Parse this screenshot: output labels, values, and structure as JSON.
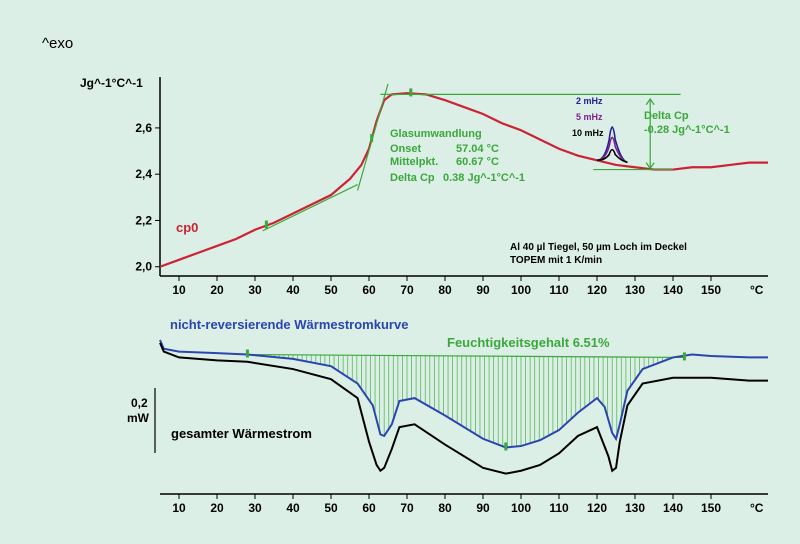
{
  "exo_label": "^exo",
  "chart_data": [
    {
      "type": "line",
      "ylabel": "Jg^-1°C^-1",
      "xlabel": "°C",
      "xlim": [
        5,
        165
      ],
      "ylim": [
        1.96,
        2.82
      ],
      "xticks": [
        10,
        20,
        30,
        40,
        50,
        60,
        70,
        80,
        90,
        100,
        110,
        120,
        130,
        140,
        150
      ],
      "yticks": [
        "2,0",
        "2,2",
        "2,4",
        "2,6"
      ],
      "ytick_values": [
        2.0,
        2.2,
        2.4,
        2.6
      ],
      "series": [
        {
          "name": "cp0",
          "color": "#cc2233",
          "x": [
            5,
            10,
            15,
            20,
            25,
            30,
            35,
            40,
            45,
            50,
            55,
            58,
            60,
            62,
            64,
            66,
            70,
            75,
            80,
            85,
            90,
            95,
            100,
            105,
            110,
            115,
            120,
            125,
            130,
            135,
            140,
            145,
            150,
            155,
            160,
            165
          ],
          "y": [
            2.0,
            2.03,
            2.06,
            2.09,
            2.12,
            2.16,
            2.19,
            2.23,
            2.27,
            2.31,
            2.38,
            2.44,
            2.51,
            2.63,
            2.72,
            2.745,
            2.75,
            2.745,
            2.72,
            2.69,
            2.66,
            2.62,
            2.59,
            2.55,
            2.51,
            2.48,
            2.46,
            2.44,
            2.43,
            2.42,
            2.42,
            2.43,
            2.43,
            2.44,
            2.45,
            2.45
          ]
        }
      ],
      "peaks": [
        {
          "label": "2 mHz",
          "color": "#202090",
          "height": 2.64
        },
        {
          "label": "5 mHz",
          "color": "#802090",
          "height": 2.58
        },
        {
          "label": "10 mHz",
          "color": "#000000",
          "height": 2.51
        }
      ],
      "annotations": {
        "title": "Glasumwandlung",
        "onset_label": "Onset",
        "onset_value": "57.04 °C",
        "mittel_label": "Mittelpkt.",
        "mittel_value": "60.67 °C",
        "delta_label": "Delta Cp",
        "delta_value": "0.38 Jg^-1°C^-1",
        "delta2_title": "Delta Cp",
        "delta2_value": "-0.28 Jg^-1°C^-1",
        "info_line1": "Al 40 µl Tiegel, 50 µm Loch im Deckel",
        "info_line2": "TOPEM mit 1 K/min"
      },
      "markers_x": [
        33,
        60.7,
        71
      ]
    },
    {
      "type": "line",
      "xlabel": "°C",
      "xlim": [
        5,
        165
      ],
      "ylim": [
        -1.2,
        0.1
      ],
      "xticks": [
        10,
        20,
        30,
        40,
        50,
        60,
        70,
        80,
        90,
        100,
        110,
        120,
        130,
        140,
        150
      ],
      "scale_label": "0,2",
      "scale_unit": "mW",
      "scale_bar": 0.2,
      "fill_label": "Feuchtigkeitsgehalt 6.51%",
      "series": [
        {
          "name": "nicht-reversierende Wärmestromkurve",
          "color": "#2a45b0",
          "x": [
            5,
            6,
            10,
            20,
            28,
            40,
            50,
            57,
            61,
            63,
            64,
            66,
            68,
            72,
            80,
            90,
            96,
            100,
            105,
            110,
            115,
            120,
            122,
            124,
            125,
            126,
            128,
            132,
            140,
            145,
            150,
            160,
            165
          ],
          "y": [
            0,
            -0.06,
            -0.08,
            -0.09,
            -0.1,
            -0.13,
            -0.18,
            -0.3,
            -0.45,
            -0.65,
            -0.66,
            -0.58,
            -0.42,
            -0.4,
            -0.52,
            -0.68,
            -0.74,
            -0.73,
            -0.69,
            -0.62,
            -0.5,
            -0.4,
            -0.46,
            -0.64,
            -0.68,
            -0.58,
            -0.35,
            -0.2,
            -0.12,
            -0.1,
            -0.11,
            -0.12,
            -0.12
          ]
        },
        {
          "name": "gesamter Wärmestrom",
          "color": "#000000",
          "x": [
            5,
            6,
            10,
            20,
            28,
            40,
            50,
            57,
            60,
            62,
            63,
            64,
            66,
            68,
            72,
            80,
            90,
            96,
            100,
            105,
            110,
            115,
            120,
            123,
            124,
            125,
            126,
            128,
            132,
            140,
            150,
            160,
            165
          ],
          "y": [
            -0.02,
            -0.08,
            -0.12,
            -0.14,
            -0.15,
            -0.2,
            -0.27,
            -0.4,
            -0.7,
            -0.86,
            -0.9,
            -0.88,
            -0.75,
            -0.6,
            -0.58,
            -0.72,
            -0.88,
            -0.92,
            -0.9,
            -0.86,
            -0.78,
            -0.66,
            -0.6,
            -0.8,
            -0.9,
            -0.88,
            -0.7,
            -0.45,
            -0.3,
            -0.26,
            -0.26,
            -0.28,
            -0.28
          ]
        }
      ],
      "baseline": {
        "x": [
          28,
          143
        ],
        "y": [
          -0.1,
          -0.12
        ]
      },
      "markers_x": [
        28,
        96,
        143
      ]
    }
  ]
}
